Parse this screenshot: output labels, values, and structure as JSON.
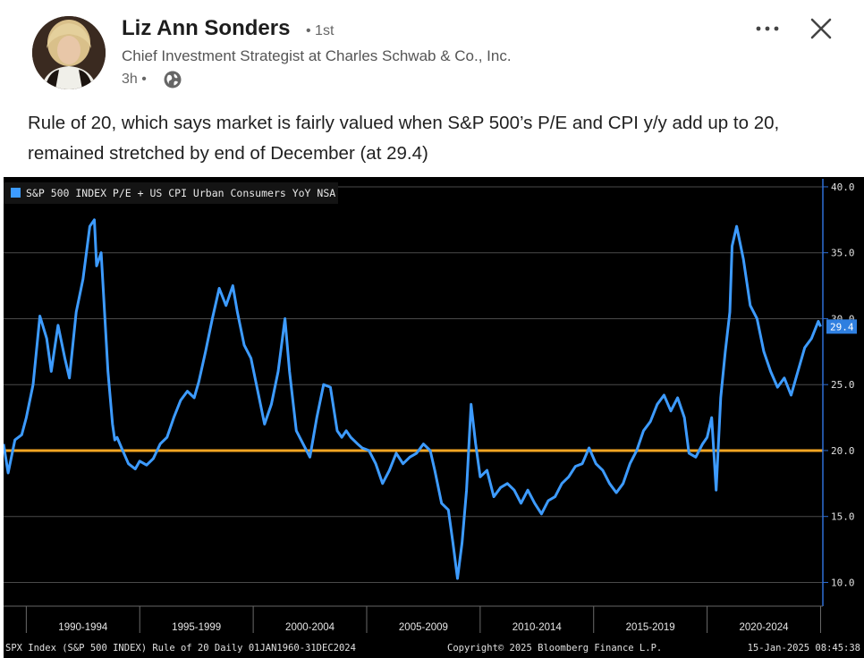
{
  "post": {
    "author_name": "Liz Ann Sonders",
    "connection_degree": "• 1st",
    "headline": "Chief Investment Strategist at Charles Schwab & Co., Inc.",
    "timestamp": "3h •",
    "visibility_icon": "globe-icon",
    "text": "Rule of 20, which says market is fairly valued when S&P 500’s P/E and CPI y/y add up to 20, remained stretched by end of December (at 29.4)",
    "more_icon": "ellipsis-icon",
    "close_icon": "close-icon"
  },
  "chart_data": {
    "type": "line",
    "legend": "S&P 500 INDEX P/E + US CPI Urban Consumers YoY NSA",
    "legend_placement": "top-left",
    "ylim": [
      8.2,
      40.2
    ],
    "yticks": [
      10.0,
      15.0,
      20.0,
      25.0,
      30.0,
      35.0,
      40.0
    ],
    "ytick_labels": [
      "10.0",
      "15.0",
      "20.0",
      "25.0",
      "30.0",
      "35.0",
      "40.0"
    ],
    "x_range": [
      1989.0,
      2025.1
    ],
    "x_period_labels": [
      "1990-1994",
      "1995-1999",
      "2000-2004",
      "2005-2009",
      "2010-2014",
      "2015-2019",
      "2020-2024"
    ],
    "grid": true,
    "reference_line": {
      "value": 20.0,
      "color": "#f5a623"
    },
    "last_value_label": "29.4",
    "footer_left": "SPX Index (S&P 500 INDEX) Rule of 20  Daily 01JAN1960-31DEC2024",
    "footer_center": "Copyright© 2025 Bloomberg Finance L.P.",
    "footer_right": "15-Jan-2025 08:45:38",
    "colors": {
      "series": "#3d9bff",
      "reference": "#f5a623",
      "background": "#000000",
      "grid": "#4a4a4a",
      "axis": "#2f6fd6"
    },
    "series": [
      {
        "x": [
          1989.0,
          1989.2,
          1989.5,
          1989.8,
          1990.0,
          1990.3,
          1990.6,
          1990.9,
          1991.1,
          1991.4,
          1991.7,
          1991.9,
          1992.2,
          1992.5,
          1992.8,
          1993.0,
          1993.1,
          1993.3,
          1993.6,
          1993.8,
          1993.9,
          1994.0,
          1994.2,
          1994.5,
          1994.8,
          1995.0,
          1995.3,
          1995.6,
          1995.9,
          1996.2,
          1996.5,
          1996.8,
          1997.1,
          1997.4,
          1997.6,
          1997.9,
          1998.2,
          1998.5,
          1998.8,
          1999.1,
          1999.3,
          1999.6,
          1999.9,
          2000.2,
          2000.5,
          2000.8,
          2001.1,
          2001.4,
          2001.6,
          2001.9,
          2002.2,
          2002.5,
          2002.8,
          2003.1,
          2003.4,
          2003.7,
          2003.9,
          2004.1,
          2004.3,
          2004.6,
          2004.8,
          2005.1,
          2005.4,
          2005.7,
          2006.0,
          2006.3,
          2006.6,
          2006.9,
          2007.2,
          2007.5,
          2007.8,
          2008.0,
          2008.3,
          2008.6,
          2008.8,
          2009.0,
          2009.2,
          2009.4,
          2009.6,
          2009.8,
          2010.0,
          2010.3,
          2010.6,
          2010.9,
          2011.2,
          2011.5,
          2011.8,
          2012.1,
          2012.4,
          2012.7,
          2013.0,
          2013.3,
          2013.6,
          2013.9,
          2014.2,
          2014.5,
          2014.8,
          2015.1,
          2015.4,
          2015.7,
          2016.0,
          2016.3,
          2016.6,
          2016.9,
          2017.2,
          2017.5,
          2017.8,
          2018.1,
          2018.4,
          2018.7,
          2019.0,
          2019.2,
          2019.5,
          2019.8,
          2020.0,
          2020.2,
          2020.4,
          2020.6,
          2020.8,
          2021.0,
          2021.1,
          2021.3,
          2021.6,
          2021.9,
          2022.2,
          2022.5,
          2022.8,
          2023.1,
          2023.4,
          2023.7,
          2024.0,
          2024.3,
          2024.6,
          2024.9,
          2025.0
        ],
        "values": [
          20.5,
          18.3,
          20.8,
          21.2,
          22.5,
          25.0,
          30.2,
          28.5,
          26.0,
          29.5,
          27.0,
          25.5,
          30.5,
          33.0,
          37.0,
          37.5,
          34.0,
          35.0,
          26.0,
          22.0,
          20.8,
          21.0,
          20.2,
          19.0,
          18.6,
          19.2,
          18.9,
          19.4,
          20.5,
          21.0,
          22.5,
          23.8,
          24.5,
          24.0,
          25.2,
          27.5,
          30.0,
          32.3,
          31.0,
          32.5,
          30.5,
          28.0,
          27.0,
          24.5,
          22.0,
          23.5,
          26.0,
          30.0,
          26.0,
          21.5,
          20.5,
          19.5,
          22.5,
          25.0,
          24.8,
          21.5,
          21.0,
          21.5,
          21.0,
          20.5,
          20.2,
          20.0,
          19.0,
          17.5,
          18.5,
          19.8,
          19.0,
          19.5,
          19.8,
          20.5,
          20.0,
          18.5,
          16.0,
          15.5,
          13.0,
          10.3,
          13.0,
          17.0,
          23.5,
          20.5,
          18.0,
          18.5,
          16.5,
          17.2,
          17.5,
          17.0,
          16.0,
          17.0,
          16.0,
          15.2,
          16.2,
          16.5,
          17.5,
          18.0,
          18.8,
          19.0,
          20.2,
          19.0,
          18.5,
          17.5,
          16.8,
          17.5,
          19.0,
          20.0,
          21.5,
          22.2,
          23.5,
          24.2,
          23.0,
          24.0,
          22.5,
          19.8,
          19.5,
          20.5,
          21.0,
          22.5,
          17.0,
          24.0,
          27.5,
          30.5,
          35.5,
          37.0,
          34.5,
          31.0,
          30.0,
          27.5,
          26.0,
          24.8,
          25.5,
          24.2,
          26.0,
          27.8,
          28.5,
          29.8,
          29.4
        ]
      }
    ]
  }
}
